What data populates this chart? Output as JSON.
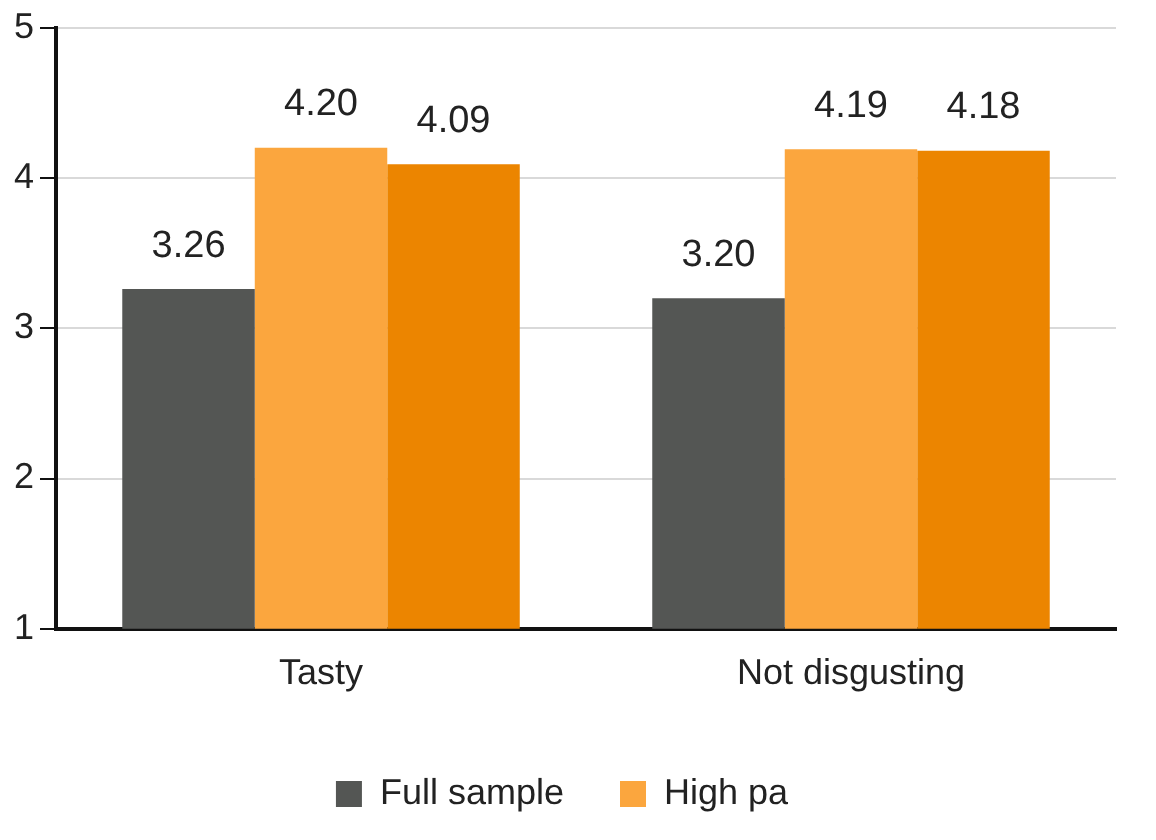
{
  "chart_data": {
    "type": "bar",
    "categories": [
      "Tasty",
      "Not disgusting"
    ],
    "series": [
      {
        "name": "Full sample",
        "color": "#545654",
        "values": [
          3.26,
          3.2
        ],
        "value_labels": [
          "3.26",
          "3.20"
        ]
      },
      {
        "name": "High pa",
        "color": "#fba63e",
        "values": [
          4.2,
          4.19
        ],
        "value_labels": [
          "4.20",
          "4.19"
        ]
      },
      {
        "color": "#ec8500",
        "values": [
          4.09,
          4.18
        ],
        "value_labels": [
          "4.09",
          "4.18"
        ]
      }
    ],
    "ylim": [
      1,
      5
    ],
    "yticks": [
      1,
      2,
      3,
      4,
      5
    ],
    "grid": "y",
    "legend": "bottom"
  }
}
